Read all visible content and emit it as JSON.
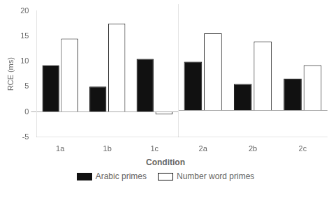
{
  "chart_data": [
    {
      "type": "bar",
      "xlabel": "Condition",
      "ylabel": "RCE (ms)",
      "categories": [
        "1a",
        "1b",
        "1c"
      ],
      "series": [
        {
          "name": "Arabic primes",
          "color": "#111111",
          "values": [
            9.2,
            5.0,
            10.5
          ]
        },
        {
          "name": "Number word primes",
          "color": "#ffffff",
          "values": [
            14.5,
            17.5,
            -0.5
          ]
        }
      ],
      "ylim": [
        -5,
        20
      ],
      "yticks": [
        -5,
        0,
        5,
        10,
        15,
        20
      ],
      "grid": false
    },
    {
      "type": "bar",
      "categories": [
        "2a",
        "2b",
        "2c"
      ],
      "series": [
        {
          "name": "Arabic primes",
          "color": "#111111",
          "values": [
            9.2,
            5.0,
            6.0
          ]
        },
        {
          "name": "Number word primes",
          "color": "#ffffff",
          "values": [
            14.5,
            13.0,
            8.5
          ]
        }
      ],
      "ylim": [
        -5,
        20
      ],
      "yticks": [
        -5,
        0,
        5,
        10,
        15,
        20
      ],
      "grid": false,
      "tick_labels": "x"
    }
  ]
}
